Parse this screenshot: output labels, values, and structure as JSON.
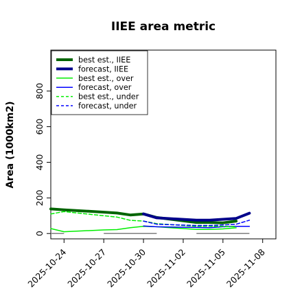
{
  "chart_data": {
    "type": "line",
    "title": "IIEE area metric",
    "xlabel": "",
    "ylabel": "Area (1000km2)",
    "xlim": [
      "2025-10-23",
      "2025-11-09"
    ],
    "ylim": [
      -30,
      1030
    ],
    "yticks": [
      0,
      200,
      400,
      600,
      800
    ],
    "ytick_labels": [
      "0",
      "200",
      "400",
      "600",
      "800"
    ],
    "xticks": [
      "2025-10-24",
      "2025-10-27",
      "2025-10-30",
      "2025-11-02",
      "2025-11-05",
      "2025-11-08"
    ],
    "xtick_labels": [
      "2025-10-24",
      "2025-10-27",
      "2025-10-30",
      "2025-11-02",
      "2025-11-05",
      "2025-11-08"
    ],
    "highlight_xtick": "2025-10-30",
    "highlight_color": "#228B22",
    "grid": false,
    "legend_position": "top-left",
    "series": [
      {
        "name": "best est., IIEE",
        "color": "#006400",
        "style": "solid",
        "width": 4,
        "x": [
          "2025-10-23",
          "2025-10-24",
          "2025-10-27",
          "2025-10-28",
          "2025-10-29",
          "2025-10-30",
          "2025-10-31",
          "2025-11-03",
          "2025-11-04",
          "2025-11-05",
          "2025-11-06"
        ],
        "y": [
          138,
          133,
          120,
          115,
          104,
          110,
          90,
          62,
          62,
          60,
          70
        ]
      },
      {
        "name": "forecast, IIEE",
        "color": "#00008B",
        "style": "solid",
        "width": 4,
        "x": [
          "2025-10-30",
          "2025-10-31",
          "2025-11-03",
          "2025-11-04",
          "2025-11-05",
          "2025-11-06",
          "2025-11-07"
        ],
        "y": [
          110,
          88,
          75,
          75,
          80,
          85,
          114
        ]
      },
      {
        "name": "best est., over",
        "color": "#00EE00",
        "style": "solid",
        "width": 1.5,
        "x": [
          "2025-10-23",
          "2025-10-24",
          "2025-10-27",
          "2025-10-28",
          "2025-10-29",
          "2025-10-30",
          "2025-10-31",
          "2025-11-03",
          "2025-11-04",
          "2025-11-05",
          "2025-11-06"
        ],
        "y": [
          28,
          10,
          20,
          22,
          33,
          40,
          38,
          23,
          23,
          26,
          32
        ]
      },
      {
        "name": "forecast, over",
        "color": "#0000FF",
        "style": "solid",
        "width": 1.5,
        "x": [
          "2025-10-30",
          "2025-10-31",
          "2025-11-03",
          "2025-11-04",
          "2025-11-05",
          "2025-11-06",
          "2025-11-07"
        ],
        "y": [
          42,
          38,
          34,
          33,
          38,
          40,
          40
        ]
      },
      {
        "name": "best est., under",
        "color": "#00EE00",
        "style": "dashed",
        "width": 1.5,
        "x": [
          "2025-10-23",
          "2025-10-24",
          "2025-10-27",
          "2025-10-28",
          "2025-10-29",
          "2025-10-30",
          "2025-10-31",
          "2025-11-03",
          "2025-11-04",
          "2025-11-05",
          "2025-11-06"
        ],
        "y": [
          110,
          123,
          100,
          92,
          74,
          70,
          55,
          40,
          40,
          40,
          38
        ]
      },
      {
        "name": "forecast, under",
        "color": "#0000FF",
        "style": "dashed",
        "width": 1.5,
        "x": [
          "2025-10-30",
          "2025-10-31",
          "2025-11-03",
          "2025-11-04",
          "2025-11-05",
          "2025-11-06",
          "2025-11-07"
        ],
        "y": [
          70,
          52,
          45,
          45,
          48,
          52,
          75
        ]
      }
    ],
    "reference_segments": {
      "color": "#888888",
      "y": 0,
      "segments": [
        [
          "2025-10-23",
          "2025-10-24"
        ],
        [
          "2025-10-27",
          "2025-10-31"
        ],
        [
          "2025-11-03",
          "2025-11-07"
        ]
      ]
    }
  }
}
